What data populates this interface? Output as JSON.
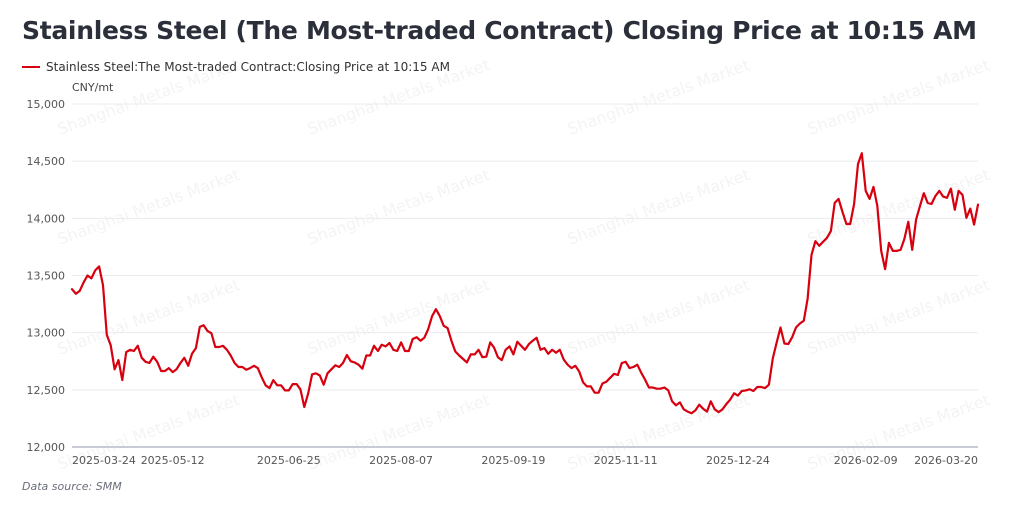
{
  "source_label": "Data source:  SMM",
  "watermark": "Shanghai Metals Market",
  "chart_data": {
    "type": "line",
    "title": "Stainless Steel (The Most-traded Contract) Closing Price at 10:15 AM",
    "ylabel": "CNY/mt",
    "xlabel": "",
    "ylim": [
      12000,
      15000
    ],
    "yticks": [
      12000,
      12500,
      13000,
      13500,
      14000,
      14500,
      15000
    ],
    "ytick_labels": [
      "12,000",
      "12,500",
      "13,000",
      "13,500",
      "14,000",
      "14,500",
      "15,000"
    ],
    "xtick_labels": [
      "2025-03-24",
      "2025-05-12",
      "2025-06-25",
      "2025-08-07",
      "2025-09-19",
      "2025-11-11",
      "2025-12-24",
      "2026-02-09",
      "2026-03-20"
    ],
    "xtick_index": [
      0,
      26,
      56,
      85,
      114,
      143,
      172,
      205,
      226
    ],
    "grid": true,
    "legend": "top-left",
    "color": "#d7000f",
    "series": [
      {
        "name": "Stainless Steel:The Most-traded Contract:Closing Price at 10:15 AM",
        "values": [
          13380,
          13340,
          13365,
          13440,
          13500,
          13475,
          13545,
          13580,
          13415,
          12980,
          12890,
          12680,
          12760,
          12585,
          12830,
          12850,
          12840,
          12885,
          12780,
          12745,
          12735,
          12790,
          12745,
          12665,
          12665,
          12690,
          12655,
          12680,
          12735,
          12780,
          12710,
          12815,
          12865,
          13050,
          13065,
          13015,
          12995,
          12875,
          12875,
          12885,
          12850,
          12800,
          12735,
          12700,
          12700,
          12675,
          12690,
          12710,
          12690,
          12610,
          12540,
          12515,
          12585,
          12540,
          12540,
          12495,
          12495,
          12550,
          12550,
          12505,
          12350,
          12470,
          12635,
          12645,
          12625,
          12545,
          12645,
          12680,
          12715,
          12700,
          12735,
          12805,
          12750,
          12740,
          12720,
          12685,
          12800,
          12800,
          12885,
          12840,
          12895,
          12880,
          12910,
          12850,
          12840,
          12915,
          12840,
          12840,
          12945,
          12960,
          12930,
          12955,
          13030,
          13145,
          13205,
          13145,
          13060,
          13040,
          12930,
          12835,
          12800,
          12770,
          12740,
          12810,
          12810,
          12850,
          12785,
          12790,
          12915,
          12870,
          12785,
          12760,
          12850,
          12880,
          12810,
          12920,
          12885,
          12850,
          12900,
          12930,
          12955,
          12850,
          12865,
          12815,
          12850,
          12825,
          12850,
          12765,
          12720,
          12690,
          12710,
          12660,
          12565,
          12530,
          12530,
          12475,
          12475,
          12555,
          12570,
          12605,
          12640,
          12630,
          12735,
          12745,
          12690,
          12700,
          12720,
          12650,
          12590,
          12520,
          12520,
          12510,
          12510,
          12520,
          12495,
          12400,
          12365,
          12390,
          12330,
          12310,
          12295,
          12320,
          12370,
          12335,
          12310,
          12400,
          12330,
          12305,
          12330,
          12375,
          12415,
          12470,
          12450,
          12490,
          12495,
          12505,
          12490,
          12525,
          12525,
          12515,
          12545,
          12775,
          12915,
          13045,
          12905,
          12900,
          12960,
          13045,
          13080,
          13105,
          13295,
          13680,
          13800,
          13760,
          13795,
          13830,
          13890,
          14135,
          14170,
          14055,
          13950,
          13950,
          14125,
          14475,
          14570,
          14240,
          14170,
          14275,
          14110,
          13715,
          13555,
          13785,
          13715,
          13715,
          13725,
          13820,
          13970,
          13725,
          13990,
          14105,
          14220,
          14135,
          14125,
          14195,
          14240,
          14190,
          14180,
          14260,
          14075,
          14240,
          14205,
          14005,
          14085,
          13945,
          14120
        ]
      }
    ]
  }
}
